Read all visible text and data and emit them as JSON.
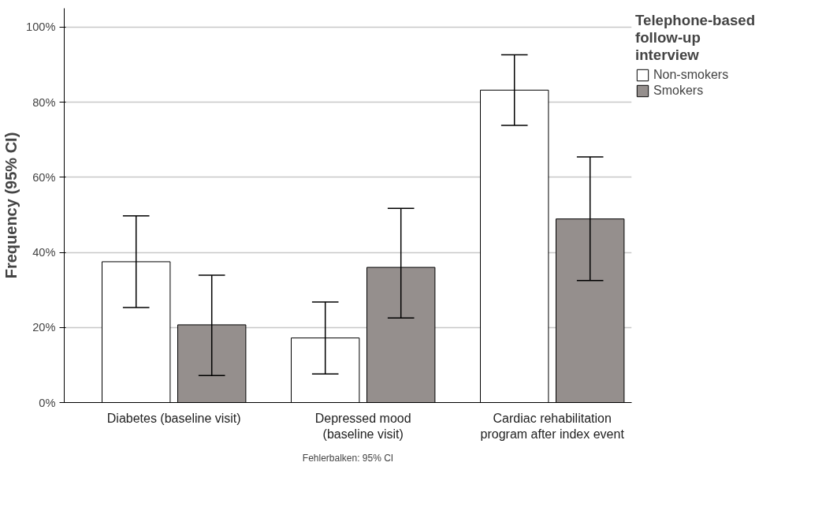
{
  "chart_data": {
    "type": "bar",
    "ylabel": "Frequency (95% CI)",
    "legend_title": "Telephone-based follow-up interview",
    "categories": [
      "Diabetes (baseline visit)",
      "Depressed mood (baseline visit)",
      "Cardiac rehabilitation program after index event"
    ],
    "series": [
      {
        "name": "Non-smokers",
        "color": "#ffffff",
        "values": [
          37.5,
          17.2,
          83.2
        ],
        "errors": [
          [
            25.3,
            49.7
          ],
          [
            7.6,
            26.8
          ],
          [
            73.8,
            92.6
          ]
        ]
      },
      {
        "name": "Smokers",
        "color": "#958f8d",
        "values": [
          20.7,
          36.0,
          48.9
        ],
        "errors": [
          [
            7.2,
            33.9
          ],
          [
            22.5,
            51.7
          ],
          [
            32.5,
            65.4
          ]
        ]
      }
    ],
    "ylim": [
      0,
      105
    ],
    "yticks": [
      {
        "value": 0,
        "label": "0%"
      },
      {
        "value": 20,
        "label": "20%"
      },
      {
        "value": 40,
        "label": "40%"
      },
      {
        "value": 60,
        "label": "60%"
      },
      {
        "value": 80,
        "label": "80%"
      },
      {
        "value": 100,
        "label": "100%"
      }
    ],
    "grid": "y",
    "legend": "top right",
    "annotations": [
      "Fehlerbalken: 95% CI"
    ]
  }
}
